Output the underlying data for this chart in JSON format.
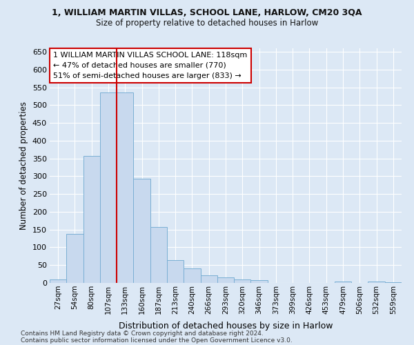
{
  "title1": "1, WILLIAM MARTIN VILLAS, SCHOOL LANE, HARLOW, CM20 3QA",
  "title2": "Size of property relative to detached houses in Harlow",
  "xlabel": "Distribution of detached houses by size in Harlow",
  "ylabel": "Number of detached properties",
  "bar_color": "#c8d9ee",
  "bar_edge_color": "#7aafd4",
  "categories": [
    "27sqm",
    "54sqm",
    "80sqm",
    "107sqm",
    "133sqm",
    "160sqm",
    "187sqm",
    "213sqm",
    "240sqm",
    "266sqm",
    "293sqm",
    "320sqm",
    "346sqm",
    "373sqm",
    "399sqm",
    "426sqm",
    "453sqm",
    "479sqm",
    "506sqm",
    "532sqm",
    "559sqm"
  ],
  "values": [
    10,
    137,
    358,
    535,
    535,
    293,
    158,
    65,
    40,
    22,
    15,
    10,
    7,
    0,
    0,
    0,
    0,
    3,
    0,
    3,
    2
  ],
  "ylim": [
    0,
    660
  ],
  "yticks": [
    0,
    50,
    100,
    150,
    200,
    250,
    300,
    350,
    400,
    450,
    500,
    550,
    600,
    650
  ],
  "vline_position": 3.5,
  "vline_color": "#cc0000",
  "annotation_line1": "1 WILLIAM MARTIN VILLAS SCHOOL LANE: 118sqm",
  "annotation_line2": "← 47% of detached houses are smaller (770)",
  "annotation_line3": "51% of semi-detached houses are larger (833) →",
  "annotation_box_color": "#ffffff",
  "annotation_box_edge": "#cc0000",
  "footer1": "Contains HM Land Registry data © Crown copyright and database right 2024.",
  "footer2": "Contains public sector information licensed under the Open Government Licence v3.0.",
  "background_color": "#dce8f5",
  "plot_bg_color": "#dce8f5",
  "grid_color": "#ffffff"
}
